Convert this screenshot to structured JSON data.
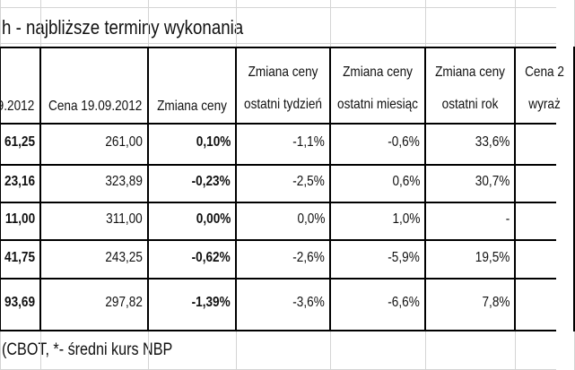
{
  "title": "h - najbliższe terminy wykonania",
  "headers": [
    [
      "9.2012"
    ],
    [
      "Cena 19.09.2012"
    ],
    [
      "Zmiana ceny"
    ],
    [
      "Zmiana ceny",
      "ostatni tydzień"
    ],
    [
      "Zmiana ceny",
      "ostatni miesiąc"
    ],
    [
      "Zmiana ceny",
      "ostatni rok"
    ],
    [
      "Cena 2",
      "wyraż"
    ]
  ],
  "rows": [
    [
      "61,25",
      "261,00",
      "0,10%",
      "-1,1%",
      "-0,6%",
      "33,6%"
    ],
    [
      "23,16",
      "323,89",
      "-0,23%",
      "-2,5%",
      "0,6%",
      "30,7%"
    ],
    [
      "11,00",
      "311,00",
      "0,00%",
      "0,0%",
      "1,0%",
      "-"
    ],
    [
      "41,75",
      "243,25",
      "-0,62%",
      "-2,6%",
      "-5,9%",
      "19,5%"
    ],
    [
      "93,69",
      "297,82",
      "-1,39%",
      "-3,6%",
      "-6,6%",
      "7,8%"
    ]
  ],
  "footer": "(CBOT, *- średni kurs NBP"
}
